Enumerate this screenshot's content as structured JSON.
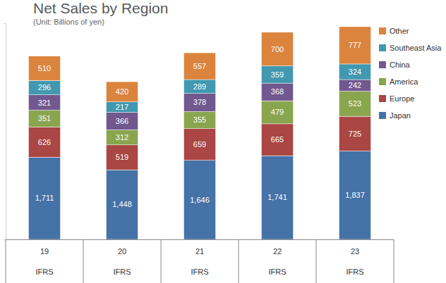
{
  "chart_data": {
    "type": "bar",
    "title": "Net Sales by Region",
    "subtitle": "(Unit: Billions of yen)",
    "categories": [
      "19",
      "20",
      "21",
      "22",
      "23"
    ],
    "category_sublabels": [
      "IFRS",
      "IFRS",
      "IFRS",
      "IFRS",
      "IFRS"
    ],
    "series": [
      {
        "name": "Japan",
        "color": "#4572a7",
        "values": [
          1711,
          1448,
          1646,
          1741,
          1837
        ],
        "value_labels": [
          "1,711",
          "1,448",
          "1,646",
          "1,741",
          "1,837"
        ]
      },
      {
        "name": "Europe",
        "color": "#aa4643",
        "values": [
          626,
          519,
          659,
          665,
          725
        ]
      },
      {
        "name": "America",
        "color": "#89a54e",
        "values": [
          351,
          312,
          355,
          479,
          523
        ]
      },
      {
        "name": "China",
        "color": "#71588f",
        "values": [
          321,
          366,
          378,
          368,
          242
        ]
      },
      {
        "name": "Southeast Asia",
        "color": "#4198af",
        "values": [
          296,
          217,
          289,
          359,
          324
        ]
      },
      {
        "name": "Other",
        "color": "#db843d",
        "values": [
          510,
          420,
          557,
          700,
          777
        ]
      }
    ],
    "ylim": [
      0,
      4500
    ],
    "yticks": [
      0
    ],
    "stacked": true,
    "data_labels": true,
    "tick_labels": "x",
    "legend": "right",
    "grid": false
  }
}
